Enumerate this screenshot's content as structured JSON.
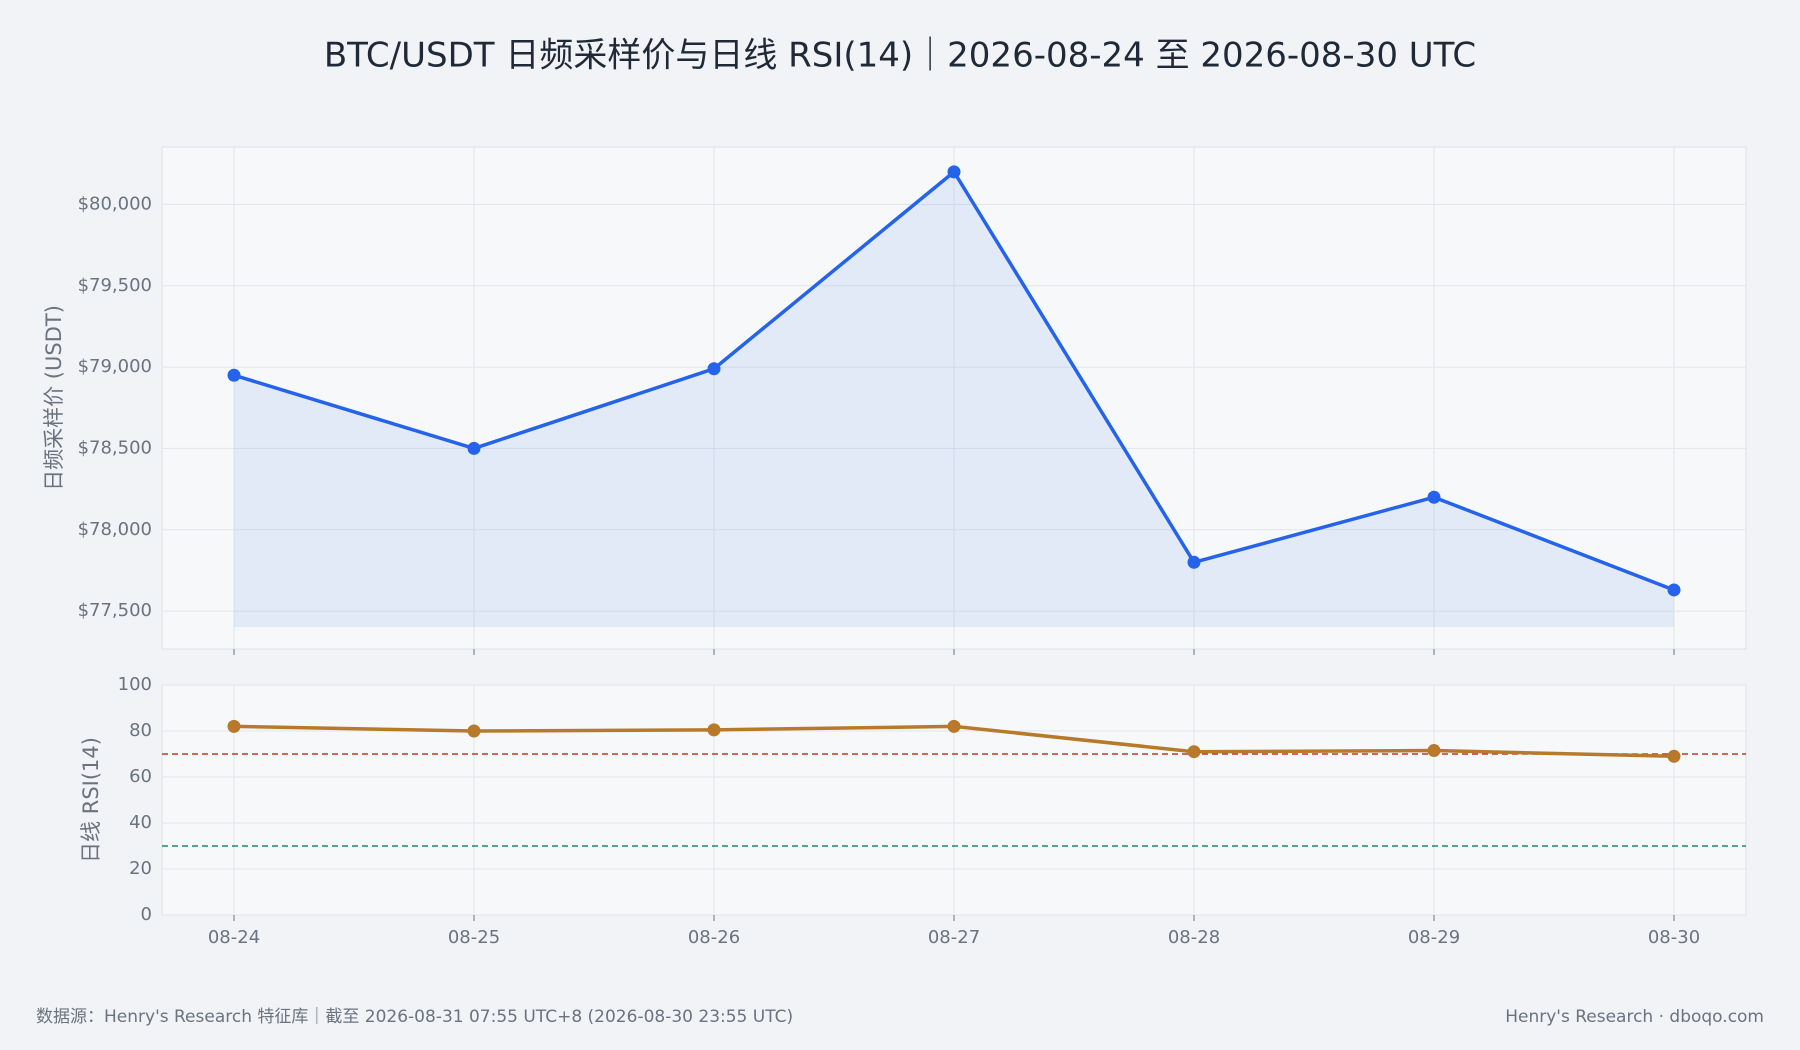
{
  "title": "BTC/USDT 日频采样价与日线 RSI(14)｜2026-08-24 至 2026-08-30 UTC",
  "source": "数据源：Henry's Research 特征库｜截至 2026-08-31 07:55 UTC+8 (2026-08-30 23:55 UTC)",
  "credit": "Henry's Research · dboqo.com",
  "chart_data": [
    {
      "type": "line",
      "y_label": "日频采样价 (USDT)",
      "color": "#2563eb",
      "fill": true,
      "grid": true,
      "values": [
        78950,
        78500,
        78990,
        80200,
        77800,
        78200,
        77630
      ],
      "ylim": [
        77267,
        80353
      ],
      "yticks": [
        {
          "value": 77500,
          "label": "$77,500"
        },
        {
          "value": 78000,
          "label": "$78,000"
        },
        {
          "value": 78500,
          "label": "$78,500"
        },
        {
          "value": 79000,
          "label": "$79,000"
        },
        {
          "value": 79500,
          "label": "$79,500"
        },
        {
          "value": 80000,
          "label": "$80,000"
        }
      ]
    },
    {
      "type": "line",
      "y_label": "日线 RSI(14)",
      "color": "#b87a2a",
      "fill": false,
      "grid": true,
      "categories": [
        "08-24",
        "08-25",
        "08-26",
        "08-27",
        "08-28",
        "08-29",
        "08-30"
      ],
      "values": [
        82,
        80,
        80.5,
        82,
        71,
        71.5,
        69
      ],
      "ylim": [
        0,
        100
      ],
      "yticks": [
        0,
        20,
        40,
        60,
        80,
        100
      ],
      "hlines": [
        {
          "value": 70,
          "color": "#c0392b"
        },
        {
          "value": 30,
          "color": "#1e8e5a"
        }
      ]
    }
  ]
}
